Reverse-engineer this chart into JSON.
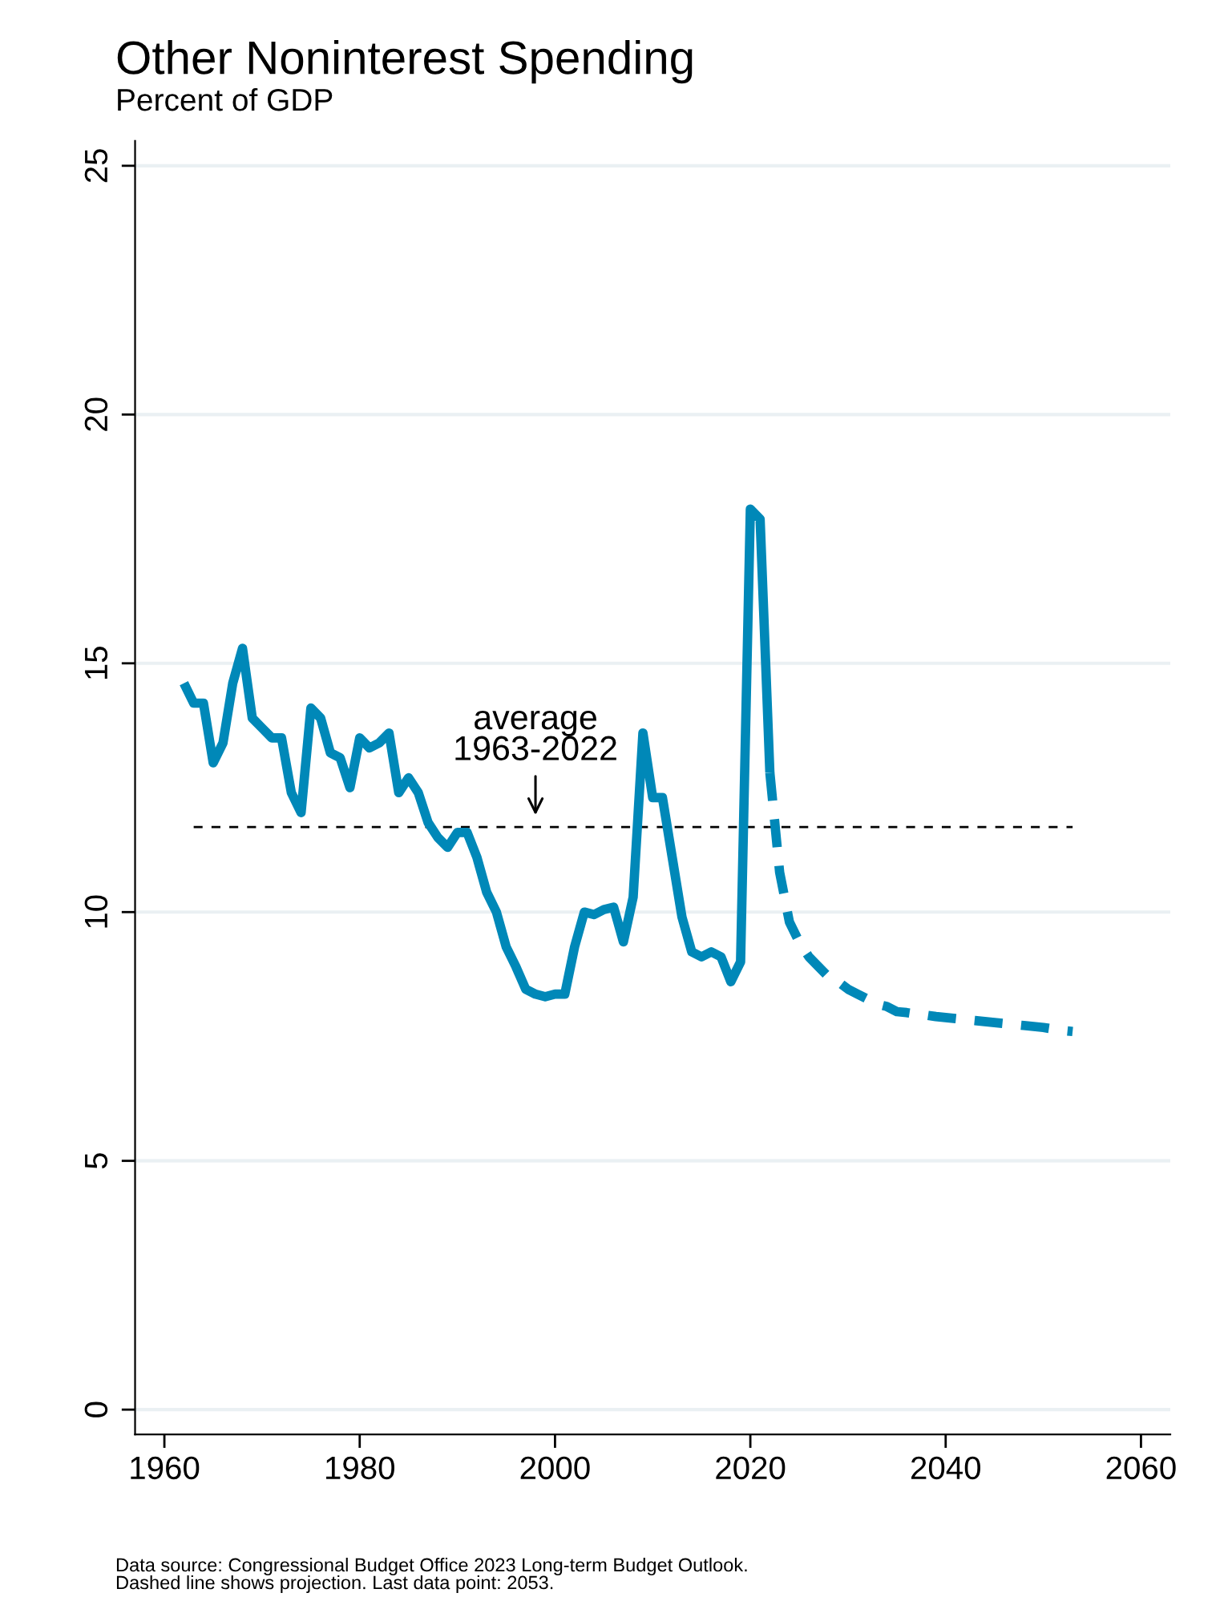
{
  "chart_data": {
    "type": "line",
    "title": "Other Noninterest Spending",
    "subtitle": "Percent of GDP",
    "series": [
      {
        "color": "#0088b8",
        "line_style": "solid",
        "x": [
          1962,
          1963,
          1964,
          1965,
          1966,
          1967,
          1968,
          1969,
          1970,
          1971,
          1972,
          1973,
          1974,
          1975,
          1976,
          1977,
          1978,
          1979,
          1980,
          1981,
          1982,
          1983,
          1984,
          1985,
          1986,
          1987,
          1988,
          1989,
          1990,
          1991,
          1992,
          1993,
          1994,
          1995,
          1996,
          1997,
          1998,
          1999,
          2000,
          2001,
          2002,
          2003,
          2004,
          2005,
          2006,
          2007,
          2008,
          2009,
          2010,
          2011,
          2012,
          2013,
          2014,
          2015,
          2016,
          2017,
          2018,
          2019,
          2020,
          2021,
          2022
        ],
        "values": [
          14.6,
          14.2,
          14.2,
          13.0,
          13.4,
          14.6,
          15.3,
          13.9,
          13.7,
          13.5,
          13.5,
          12.4,
          12.0,
          14.1,
          13.9,
          13.2,
          13.1,
          12.5,
          13.5,
          13.3,
          13.4,
          13.6,
          12.4,
          12.7,
          12.4,
          11.8,
          11.5,
          11.3,
          11.6,
          11.6,
          11.1,
          10.4,
          10.0,
          9.3,
          8.9,
          8.45,
          8.35,
          8.3,
          8.35,
          8.35,
          9.3,
          10.0,
          9.95,
          10.05,
          10.1,
          9.4,
          10.3,
          13.6,
          12.3,
          12.3,
          11.1,
          9.9,
          9.2,
          9.1,
          9.2,
          9.1,
          8.6,
          9.0,
          18.1,
          17.9,
          12.8
        ]
      },
      {
        "color": "#0088b8",
        "line_style": "dashed",
        "x": [
          2022,
          2023,
          2024,
          2025,
          2026,
          2027,
          2028,
          2029,
          2030,
          2031,
          2032,
          2033,
          2034,
          2035,
          2036,
          2037,
          2038,
          2039,
          2040,
          2041,
          2042,
          2043,
          2044,
          2045,
          2046,
          2047,
          2048,
          2049,
          2050,
          2051,
          2052,
          2053
        ],
        "values": [
          12.8,
          10.8,
          9.8,
          9.4,
          9.1,
          8.9,
          8.7,
          8.6,
          8.45,
          8.35,
          8.25,
          8.15,
          8.1,
          8.0,
          7.98,
          7.95,
          7.93,
          7.9,
          7.88,
          7.86,
          7.84,
          7.82,
          7.8,
          7.78,
          7.76,
          7.74,
          7.72,
          7.7,
          7.68,
          7.65,
          7.62,
          7.6
        ]
      },
      {
        "color": "#000000",
        "line_style": "dashed",
        "x": [
          1963,
          2053
        ],
        "values": [
          11.71,
          11.71
        ]
      }
    ],
    "xlim": [
      1957,
      2063
    ],
    "xticks": [
      1960,
      1980,
      2000,
      2020,
      2040,
      2060
    ],
    "ylim": [
      -0.5,
      25.5
    ],
    "yticks": [
      0,
      5,
      10,
      15,
      20,
      25
    ],
    "grid": "y",
    "marker": "none",
    "annotations": [
      {
        "text": "average\n1963-2022",
        "x": 1998,
        "y": 11.71
      },
      "Data source: Congressional Budget Office 2023 Long-term Budget Outlook.\nDashed line shows projection. Last data point: 2053."
    ]
  }
}
